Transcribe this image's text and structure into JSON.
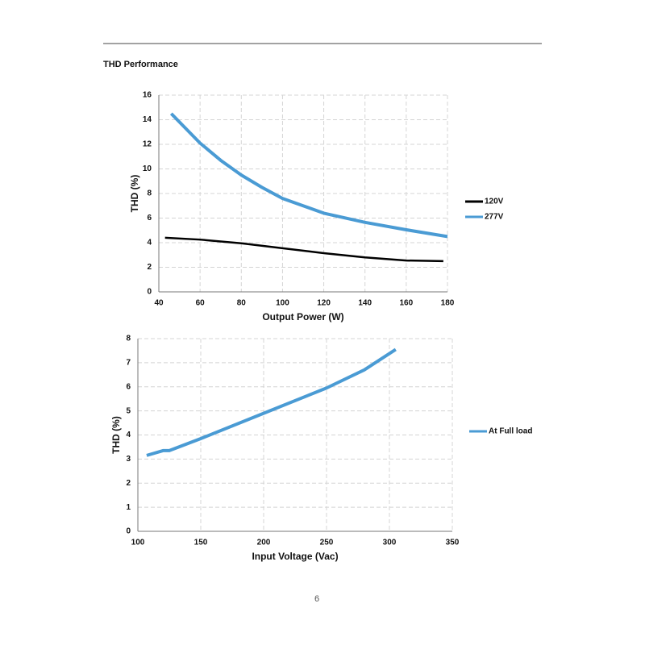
{
  "header": {
    "title": "THD Performance"
  },
  "page_number": "6",
  "chart_data": [
    {
      "type": "line",
      "x_label": "Output Power (W)",
      "y_label": "THD (%)",
      "xlim": [
        40,
        180
      ],
      "xticks": [
        40,
        60,
        80,
        100,
        120,
        140,
        160,
        180
      ],
      "ylim": [
        0,
        16
      ],
      "yticks": [
        0,
        2,
        4,
        6,
        8,
        10,
        12,
        14,
        16
      ],
      "grid": true,
      "legend": "right",
      "series": [
        {
          "name": "120V",
          "color": "#000000",
          "x": [
            43,
            60,
            80,
            100,
            120,
            140,
            160,
            178
          ],
          "values": [
            4.4,
            4.25,
            3.95,
            3.55,
            3.15,
            2.8,
            2.55,
            2.5
          ]
        },
        {
          "name": "277V",
          "color": "#4a9bd4",
          "x": [
            46,
            60,
            70,
            80,
            90,
            100,
            120,
            140,
            160,
            180
          ],
          "values": [
            14.5,
            12.1,
            10.7,
            9.5,
            8.5,
            7.6,
            6.4,
            5.65,
            5.05,
            4.5
          ]
        }
      ]
    },
    {
      "type": "line",
      "x_label": "Input Voltage (Vac)",
      "y_label": "THD (%)",
      "xlim": [
        100,
        350
      ],
      "xticks": [
        100,
        150,
        200,
        250,
        300,
        350
      ],
      "ylim": [
        0,
        8
      ],
      "yticks": [
        0,
        1,
        2,
        3,
        4,
        5,
        6,
        7,
        8
      ],
      "grid": true,
      "legend": "right",
      "series": [
        {
          "name": "At Full load",
          "color": "#4a9bd4",
          "x": [
            107,
            120,
            125,
            150,
            200,
            250,
            280,
            305
          ],
          "values": [
            3.15,
            3.35,
            3.35,
            3.85,
            4.9,
            5.95,
            6.7,
            7.55
          ]
        }
      ]
    }
  ]
}
